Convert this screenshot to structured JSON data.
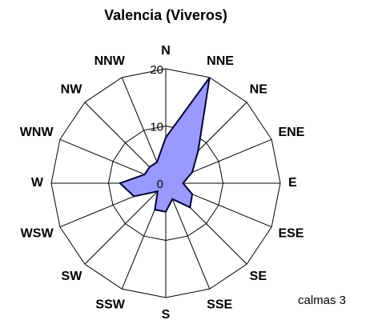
{
  "chart_data": {
    "type": "radar",
    "title": "Valencia (Viveros)",
    "categories": [
      "N",
      "NNE",
      "NE",
      "ENE",
      "E",
      "ESE",
      "SE",
      "SSE",
      "S",
      "SSW",
      "SW",
      "WSW",
      "W",
      "WNW",
      "NW",
      "NNW"
    ],
    "values": [
      8,
      20,
      8,
      5,
      3,
      5,
      6,
      3,
      5,
      5,
      2,
      6,
      8,
      4,
      4,
      4
    ],
    "color": "#9999ff",
    "ylim": [
      0,
      20
    ],
    "yticks": [
      0,
      10,
      20
    ],
    "grid": true,
    "annotation": "calmas 3"
  }
}
